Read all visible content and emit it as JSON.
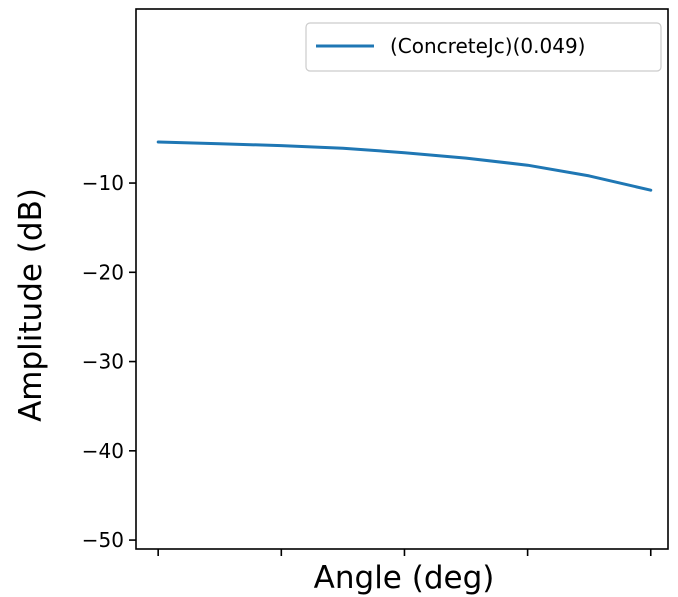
{
  "chart_data": {
    "type": "line",
    "title": "",
    "xlabel": "Angle (deg)",
    "ylabel": "Amplitude (dB)",
    "xlim": [
      -0.18,
      4.14
    ],
    "ylim": [
      -51,
      9.5
    ],
    "x_ticks": [
      0,
      1,
      2,
      3,
      4
    ],
    "x_tick_labels": [
      "",
      "",
      "",
      "",
      ""
    ],
    "y_ticks": [
      -10,
      -20,
      -30,
      -40,
      -50
    ],
    "y_tick_labels": [
      "−10",
      "−20",
      "−30",
      "−40",
      "−50"
    ],
    "grid": false,
    "legend_position": "top-right",
    "series": [
      {
        "name": "(ConcreteJc)(0.049)",
        "color": "#1f77b4",
        "x": [
          0,
          0.5,
          1,
          1.5,
          2,
          2.5,
          3,
          3.5,
          4
        ],
        "y": [
          -5.4,
          -5.6,
          -5.8,
          -6.1,
          -6.6,
          -7.2,
          -8.0,
          -9.2,
          -10.8
        ]
      }
    ]
  }
}
